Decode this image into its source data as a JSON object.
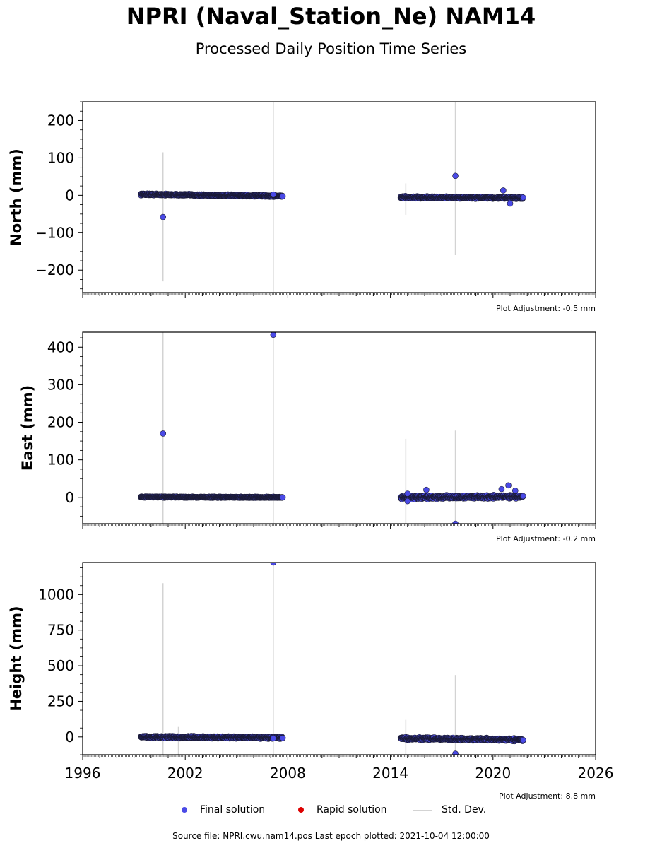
{
  "header": {
    "title": "NPRI (Naval_Station_Ne) NAM14",
    "subtitle": "Processed Daily Position Time Series"
  },
  "legend": {
    "final_label": "Final solution",
    "rapid_label": "Rapid solution",
    "std_label": "Std. Dev.",
    "final_color": "#4a4ae6",
    "rapid_color": "#dd0000",
    "std_color": "#d3d3d3"
  },
  "footer": {
    "text": "Source file: NPRI.cwu.nam14.pos  Last epoch plotted: 2021-10-04 12:00:00"
  },
  "chart_data": [
    {
      "type": "scatter",
      "ylabel": "North (mm)",
      "adjustment": "Plot Adjustment: -0.5 mm",
      "xlim": [
        1996,
        2026
      ],
      "ylim": [
        -260,
        250
      ],
      "xticks": [
        1996,
        2002,
        2008,
        2014,
        2020,
        2026
      ],
      "yticks": [
        -200,
        -100,
        0,
        100,
        200
      ],
      "segments": [
        {
          "x_start": 1999.4,
          "x_end": 2007.7,
          "y_start": 3,
          "y_end": -2,
          "spread": 3
        },
        {
          "x_start": 2014.6,
          "x_end": 2021.76,
          "y_start": -5,
          "y_end": -7,
          "spread": 4
        }
      ],
      "outliers": [
        {
          "x": 2000.7,
          "y": -58
        },
        {
          "x": 2007.15,
          "y": 2
        },
        {
          "x": 2017.8,
          "y": 52
        },
        {
          "x": 2020.6,
          "y": 13
        },
        {
          "x": 2021.0,
          "y": -22
        }
      ],
      "std_bars": [
        {
          "x": 2000.7,
          "low": -230,
          "high": 115
        },
        {
          "x": 2007.15,
          "low": -260,
          "high": 250
        },
        {
          "x": 2014.9,
          "low": -52,
          "high": 32
        },
        {
          "x": 2017.8,
          "low": -160,
          "high": 250
        }
      ]
    },
    {
      "type": "scatter",
      "ylabel": "East (mm)",
      "adjustment": "Plot Adjustment: -0.2 mm",
      "xlim": [
        1996,
        2026
      ],
      "ylim": [
        -70,
        440
      ],
      "xticks": [
        1996,
        2002,
        2008,
        2014,
        2020,
        2026
      ],
      "yticks": [
        0,
        100,
        200,
        300,
        400
      ],
      "segments": [
        {
          "x_start": 1999.4,
          "x_end": 2007.7,
          "y_start": 1,
          "y_end": 0,
          "spread": 2
        },
        {
          "x_start": 2014.6,
          "x_end": 2021.76,
          "y_start": 0,
          "y_end": 2,
          "spread": 6
        }
      ],
      "outliers": [
        {
          "x": 2000.7,
          "y": 170
        },
        {
          "x": 2007.15,
          "y": 433
        },
        {
          "x": 2015.0,
          "y": 10
        },
        {
          "x": 2015.0,
          "y": -10
        },
        {
          "x": 2016.1,
          "y": 20
        },
        {
          "x": 2017.8,
          "y": -70
        },
        {
          "x": 2020.5,
          "y": 22
        },
        {
          "x": 2020.9,
          "y": 32
        },
        {
          "x": 2021.3,
          "y": 18
        }
      ],
      "std_bars": [
        {
          "x": 2000.7,
          "low": -70,
          "high": 440
        },
        {
          "x": 2007.15,
          "low": -70,
          "high": 440
        },
        {
          "x": 2014.9,
          "low": -70,
          "high": 156
        },
        {
          "x": 2017.8,
          "low": -70,
          "high": 178
        }
      ]
    },
    {
      "type": "scatter",
      "ylabel": "Height (mm)",
      "adjustment": "Plot Adjustment: 8.8 mm",
      "xlim": [
        1996,
        2026
      ],
      "ylim": [
        -125,
        1225
      ],
      "xticks": [
        1996,
        2002,
        2008,
        2014,
        2020,
        2026
      ],
      "xticklabels": [
        "1996",
        "2002",
        "2008",
        "2014",
        "2020",
        "2026"
      ],
      "yticks": [
        0,
        250,
        500,
        750,
        1000
      ],
      "segments": [
        {
          "x_start": 1999.4,
          "x_end": 2007.7,
          "y_start": 0,
          "y_end": -5,
          "spread": 10
        },
        {
          "x_start": 2014.6,
          "x_end": 2021.76,
          "y_start": -10,
          "y_end": -20,
          "spread": 12
        }
      ],
      "outliers": [
        {
          "x": 2007.15,
          "y": 1225
        },
        {
          "x": 2007.15,
          "y": -10
        },
        {
          "x": 2017.8,
          "y": -118
        }
      ],
      "std_bars": [
        {
          "x": 2000.7,
          "low": -125,
          "high": 1080
        },
        {
          "x": 2001.6,
          "low": -125,
          "high": 70
        },
        {
          "x": 2007.15,
          "low": -125,
          "high": 1225
        },
        {
          "x": 2014.9,
          "low": -125,
          "high": 120
        },
        {
          "x": 2017.8,
          "low": -125,
          "high": 435
        }
      ]
    }
  ]
}
